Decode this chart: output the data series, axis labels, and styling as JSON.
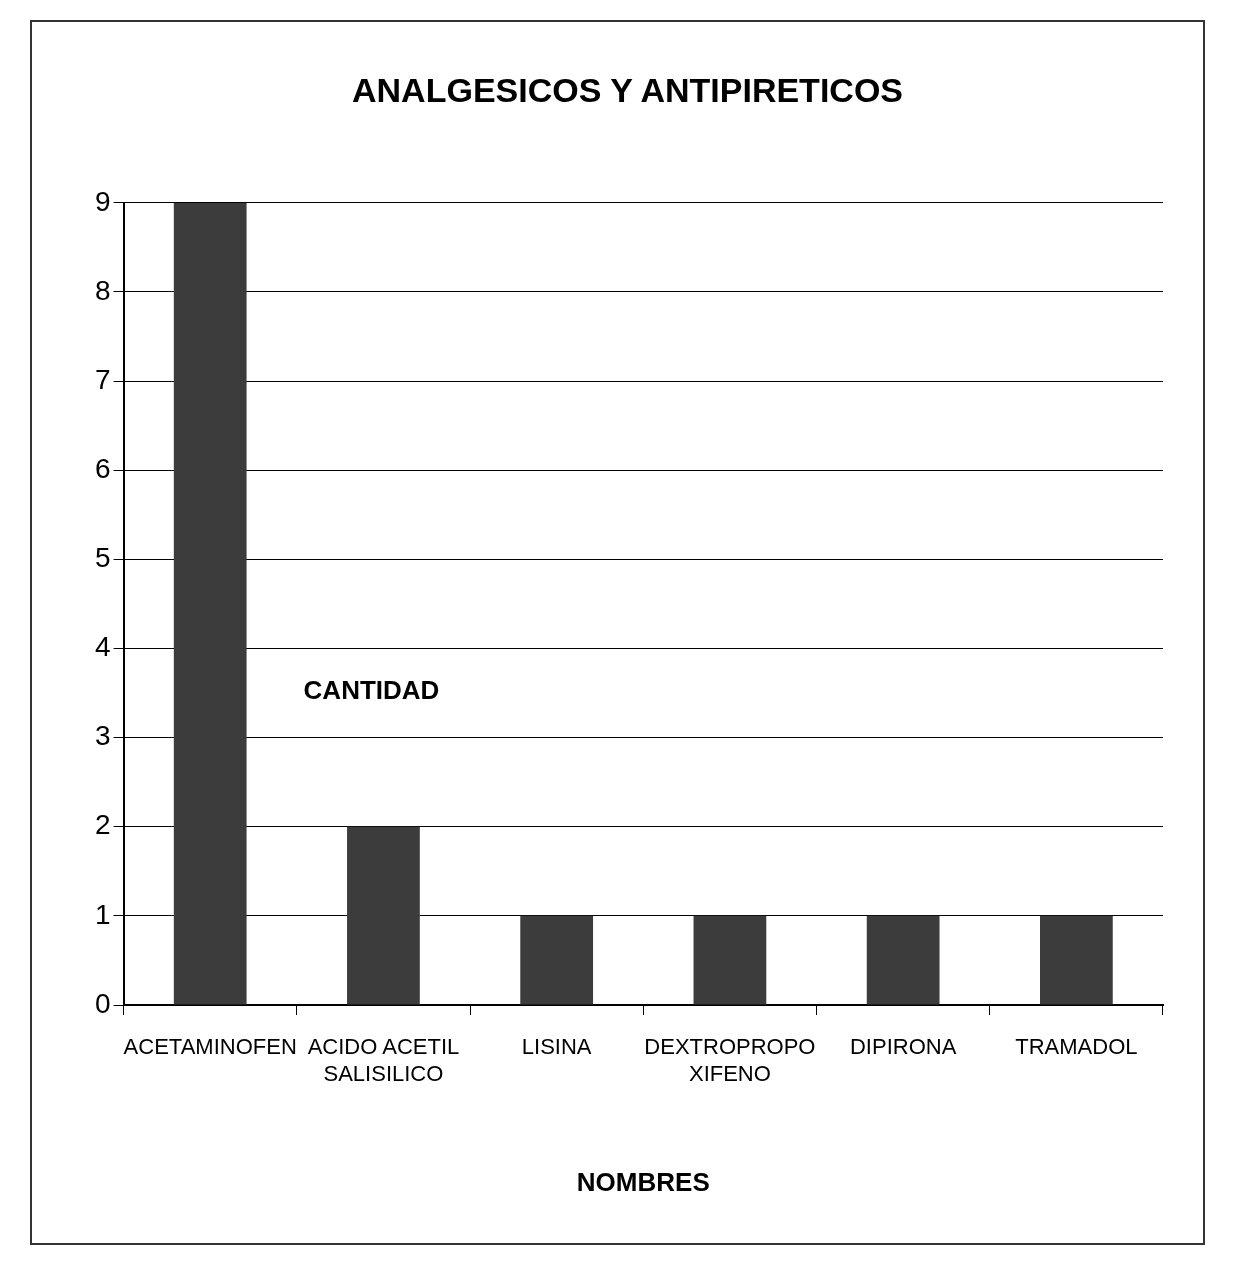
{
  "chart_data": {
    "type": "bar",
    "title": "ANALGESICOS Y ANTIPIRETICOS",
    "xlabel": "NOMBRES",
    "ylabel": "CANTIDAD",
    "categories": [
      "ACETAMINOFEN",
      "ACIDO ACETIL\nSALISILICO",
      "LISINA",
      "DEXTROPROPO\nXIFENO",
      "DIPIRONA",
      "TRAMADOL"
    ],
    "values": [
      9,
      2,
      1,
      1,
      1,
      1
    ],
    "color": "#3c3c3c",
    "ylim": [
      0,
      9
    ],
    "yticks": [
      0,
      1,
      2,
      3,
      4,
      5,
      6,
      7,
      8,
      9
    ],
    "grid": "y",
    "legend": false
  }
}
